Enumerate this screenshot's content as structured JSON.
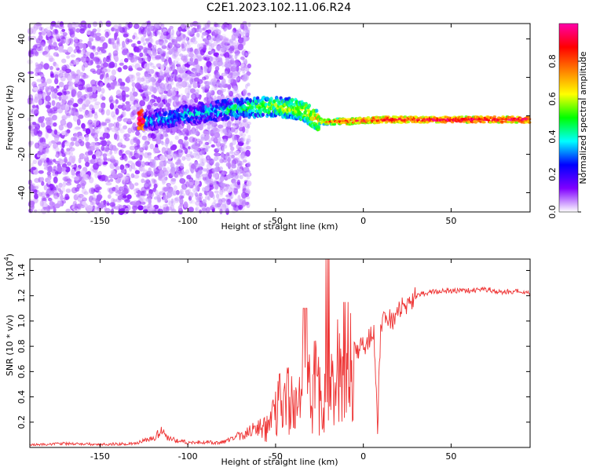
{
  "title": "C2E1.2023.102.11.06.R24",
  "chart_data": [
    {
      "type": "heatmap",
      "xlabel": "Height of straight line (km)",
      "ylabel": "Frequency (Hz)",
      "xlim": [
        -190,
        95
      ],
      "ylim": [
        -50,
        48
      ],
      "xticks": [
        -150,
        -100,
        -50,
        0,
        50
      ],
      "yticks": [
        -40,
        -20,
        0,
        20,
        40
      ],
      "colorbar": {
        "label": "Normalized spectral amplitude",
        "range": [
          0,
          1
        ],
        "ticks": [
          "0.0",
          "0.2",
          "0.4",
          "0.6",
          "0.8"
        ],
        "colormap": [
          "#ffffff",
          "#8000ff",
          "#0000ff",
          "#00ffff",
          "#00ff00",
          "#ffff00",
          "#ff8000",
          "#ff0000",
          "#ff00aa"
        ]
      },
      "ridge": [
        {
          "x": -125,
          "y": -3,
          "a": 0.3
        },
        {
          "x": -110,
          "y": -1,
          "a": 0.35
        },
        {
          "x": -90,
          "y": 2,
          "a": 0.35
        },
        {
          "x": -70,
          "y": 4,
          "a": 0.45
        },
        {
          "x": -50,
          "y": 5,
          "a": 0.55
        },
        {
          "x": -35,
          "y": 3,
          "a": 0.6
        },
        {
          "x": -25,
          "y": -3,
          "a": 0.7
        },
        {
          "x": -10,
          "y": -3,
          "a": 0.85
        },
        {
          "x": 10,
          "y": -2,
          "a": 0.9
        },
        {
          "x": 40,
          "y": -2,
          "a": 0.95
        },
        {
          "x": 90,
          "y": -2,
          "a": 0.95
        }
      ]
    },
    {
      "type": "line",
      "xlabel": "Height of straight line (km)",
      "ylabel": "SNR (10 * v/v)",
      "yscale_label": "(x10",
      "yscale_exp": "4",
      "xlim": [
        -190,
        95
      ],
      "ylim": [
        0,
        14900
      ],
      "xticks": [
        -150,
        -100,
        -50,
        0,
        50
      ],
      "yticks": [
        {
          "v": 2000,
          "label": "0.2"
        },
        {
          "v": 4000,
          "label": "0.4"
        },
        {
          "v": 6000,
          "label": "0.6"
        },
        {
          "v": 8000,
          "label": "0.8"
        },
        {
          "v": 10000,
          "label": "1.0"
        },
        {
          "v": 12000,
          "label": "1.2"
        },
        {
          "v": 14000,
          "label": "1.4"
        }
      ],
      "color": "#ee3333",
      "series": [
        {
          "x": [
            -190,
            -170,
            -150,
            -130,
            -120,
            -115,
            -112,
            -108,
            -100,
            -90,
            -80,
            -72,
            -68,
            -62,
            -58,
            -55,
            -52,
            -48,
            -44,
            -40,
            -36,
            -32,
            -28,
            -24,
            -20,
            -16,
            -12,
            -8,
            -4,
            0,
            4,
            6,
            8,
            10,
            12,
            16,
            20,
            25,
            30,
            35,
            40,
            50,
            60,
            70,
            80,
            90,
            95
          ],
          "y": [
            200,
            300,
            250,
            300,
            700,
            1200,
            900,
            600,
            400,
            400,
            400,
            900,
            1000,
            1500,
            1300,
            2000,
            3000,
            3600,
            4000,
            3200,
            4500,
            4000,
            5000,
            3500,
            4200,
            5500,
            6500,
            7000,
            7500,
            8000,
            8800,
            9500,
            1500,
            9800,
            10500,
            10000,
            10800,
            11200,
            12000,
            12200,
            12300,
            12400,
            12400,
            12500,
            12300,
            12400,
            12100
          ]
        }
      ]
    }
  ]
}
